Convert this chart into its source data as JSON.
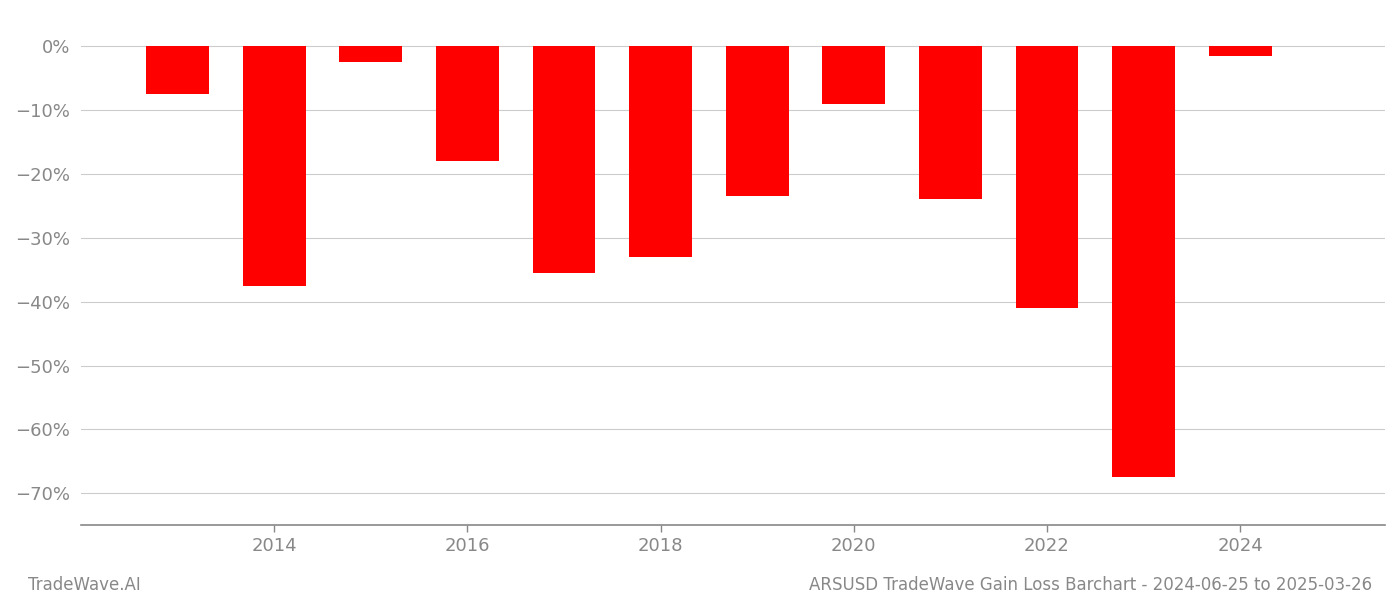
{
  "years": [
    2013,
    2014,
    2015,
    2016,
    2017,
    2018,
    2019,
    2020,
    2021,
    2022,
    2023,
    2024
  ],
  "values": [
    -7.5,
    -37.5,
    -2.5,
    -18.0,
    -35.5,
    -33.0,
    -23.5,
    -9.0,
    -24.0,
    -41.0,
    -67.5,
    -1.5
  ],
  "bar_color": "#ff0000",
  "background_color": "#ffffff",
  "grid_color": "#cccccc",
  "axis_color": "#888888",
  "text_color": "#888888",
  "ylim": [
    -75,
    3
  ],
  "yticks": [
    0,
    -10,
    -20,
    -30,
    -40,
    -50,
    -60,
    -70
  ],
  "xlim": [
    2012.0,
    2025.5
  ],
  "title": "ARSUSD TradeWave Gain Loss Barchart - 2024-06-25 to 2025-03-26",
  "watermark": "TradeWave.AI",
  "bar_width": 0.65
}
